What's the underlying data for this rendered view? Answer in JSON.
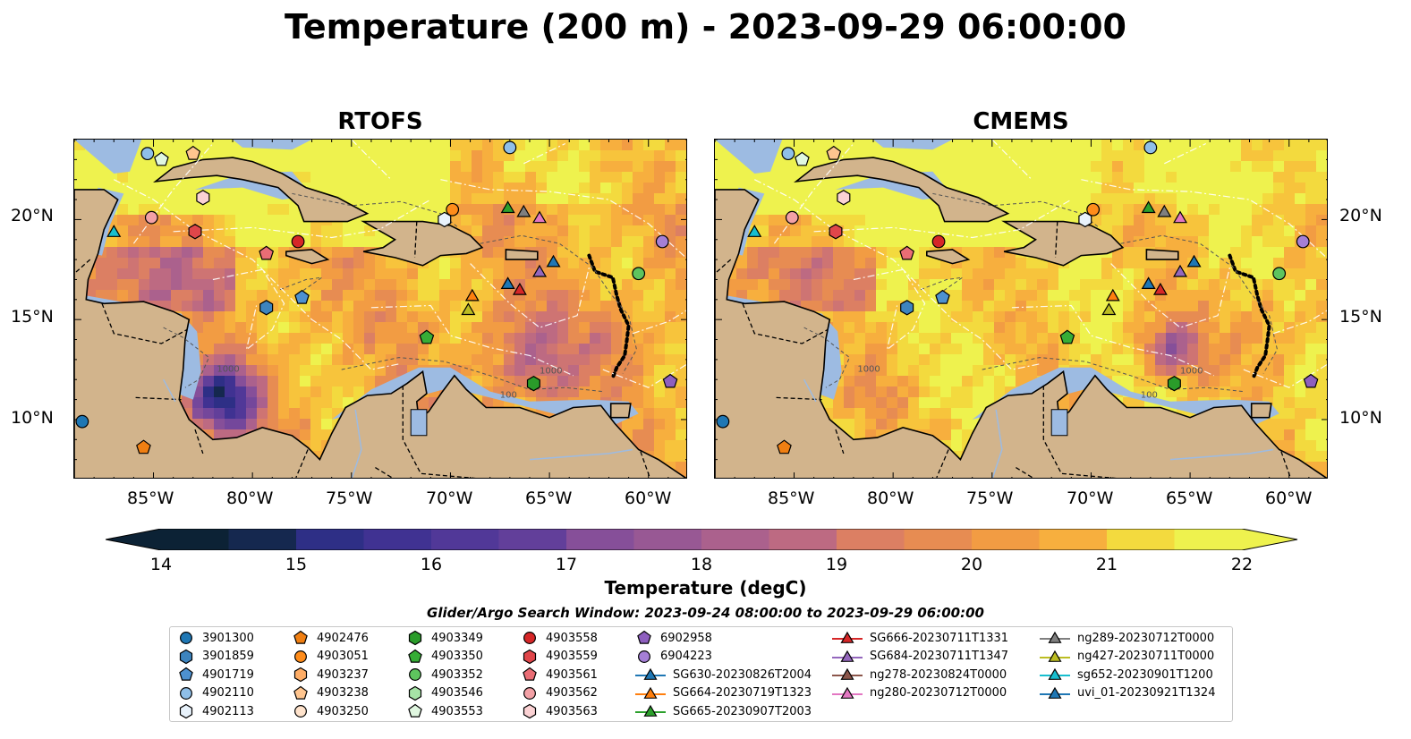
{
  "title": "Temperature (200 m) - 2023-09-29 06:00:00",
  "panels": [
    {
      "title": "RTOFS"
    },
    {
      "title": "CMEMS"
    }
  ],
  "map_extent": {
    "lon": [
      -89,
      -58
    ],
    "lat": [
      7,
      24
    ]
  },
  "lon_ticks": [
    "85°W",
    "80°W",
    "75°W",
    "70°W",
    "65°W",
    "60°W"
  ],
  "lat_ticks": [
    "20°N",
    "15°N",
    "10°N"
  ],
  "contour_labels": [
    "1000",
    "1000",
    "100"
  ],
  "colorbar": {
    "label": "Temperature (degC)",
    "ticks": [
      "14",
      "15",
      "16",
      "17",
      "18",
      "19",
      "20",
      "21",
      "22"
    ],
    "range": [
      14,
      22
    ],
    "extend": "both"
  },
  "search_window": "Glider/Argo Search Window: 2023-09-24 08:00:00 to 2023-09-29 06:00:00",
  "legend_columns": [
    [
      {
        "label": "3901300",
        "marker": "circle",
        "color": "#1f77b4"
      },
      {
        "label": "3901859",
        "marker": "hexagon",
        "color": "#3d84be"
      },
      {
        "label": "4901719",
        "marker": "pentagon",
        "color": "#4d91d0"
      },
      {
        "label": "4902110",
        "marker": "circle",
        "color": "#8fbfe8"
      },
      {
        "label": "4902113",
        "marker": "hexagon",
        "color": "#e8f2fb"
      }
    ],
    [
      {
        "label": "4902476",
        "marker": "pentagon",
        "color": "#f07f12"
      },
      {
        "label": "4903051",
        "marker": "circle",
        "color": "#ff8c1a"
      },
      {
        "label": "4903237",
        "marker": "hexagon",
        "color": "#ffad66"
      },
      {
        "label": "4903238",
        "marker": "pentagon",
        "color": "#ffc58f"
      },
      {
        "label": "4903250",
        "marker": "circle",
        "color": "#ffe3cc"
      }
    ],
    [
      {
        "label": "4903349",
        "marker": "hexagon",
        "color": "#2a9c2a"
      },
      {
        "label": "4903350",
        "marker": "pentagon",
        "color": "#36ad36"
      },
      {
        "label": "4903352",
        "marker": "circle",
        "color": "#5ec45e"
      },
      {
        "label": "4903546",
        "marker": "hexagon",
        "color": "#a6e3a6"
      },
      {
        "label": "4903553",
        "marker": "pentagon",
        "color": "#e0f7e0"
      }
    ],
    [
      {
        "label": "4903558",
        "marker": "circle",
        "color": "#d62728"
      },
      {
        "label": "4903559",
        "marker": "hexagon",
        "color": "#e0464a"
      },
      {
        "label": "4903561",
        "marker": "pentagon",
        "color": "#ea6d75"
      },
      {
        "label": "4903562",
        "marker": "circle",
        "color": "#f3a1a6"
      },
      {
        "label": "4903563",
        "marker": "hexagon",
        "color": "#fbd2d4"
      }
    ],
    [
      {
        "label": "6902958",
        "marker": "pentagon",
        "color": "#8e5fbf"
      },
      {
        "label": "6904223",
        "marker": "circle",
        "color": "#a57fd6"
      },
      {
        "label": "SG630-20230826T2004",
        "marker": "triangle",
        "color": "#1f77b4",
        "line": true
      },
      {
        "label": "SG664-20230719T1323",
        "marker": "triangle",
        "color": "#ff7f0e",
        "line": true
      },
      {
        "label": "SG665-20230907T2003",
        "marker": "triangle",
        "color": "#2ca02c",
        "line": true
      }
    ],
    [
      {
        "label": "SG666-20230711T1331",
        "marker": "triangle",
        "color": "#d62728",
        "line": true
      },
      {
        "label": "SG684-20230711T1347",
        "marker": "triangle",
        "color": "#9467bd",
        "line": true
      },
      {
        "label": "ng278-20230824T0000",
        "marker": "triangle",
        "color": "#8c564b",
        "line": true
      },
      {
        "label": "ng280-20230712T0000",
        "marker": "triangle",
        "color": "#e377c2",
        "line": true
      }
    ],
    [
      {
        "label": "ng289-20230712T0000",
        "marker": "triangle",
        "color": "#7f7f7f",
        "line": true
      },
      {
        "label": "ng427-20230711T0000",
        "marker": "triangle",
        "color": "#bcbd22",
        "line": true
      },
      {
        "label": "sg652-20230901T1200",
        "marker": "triangle",
        "color": "#17becf",
        "line": true
      },
      {
        "label": "uvi_01-20230921T1324",
        "marker": "triangle",
        "color": "#1f77b4",
        "line": true
      }
    ]
  ],
  "observations": [
    {
      "marker": "circle",
      "color": "#8fbfe8",
      "lon": -85.3,
      "lat": 23.3
    },
    {
      "marker": "pentagon",
      "color": "#e0f7e0",
      "lon": -84.6,
      "lat": 23.0
    },
    {
      "marker": "pentagon",
      "color": "#ffc58f",
      "lon": -83.0,
      "lat": 23.3
    },
    {
      "marker": "hexagon",
      "color": "#fbd2d4",
      "lon": -82.5,
      "lat": 21.1
    },
    {
      "marker": "circle",
      "color": "#f3a1a6",
      "lon": -85.1,
      "lat": 20.1
    },
    {
      "marker": "hexagon",
      "color": "#e0464a",
      "lon": -82.9,
      "lat": 19.4
    },
    {
      "marker": "triangle",
      "color": "#17becf",
      "lon": -87.0,
      "lat": 19.4
    },
    {
      "marker": "pentagon",
      "color": "#ea6d75",
      "lon": -79.3,
      "lat": 18.3
    },
    {
      "marker": "circle",
      "color": "#d62728",
      "lon": -77.7,
      "lat": 18.9
    },
    {
      "marker": "hexagon",
      "color": "#3d84be",
      "lon": -79.3,
      "lat": 15.6
    },
    {
      "marker": "pentagon",
      "color": "#4d91d0",
      "lon": -77.5,
      "lat": 16.1
    },
    {
      "marker": "circle",
      "color": "#ff8c1a",
      "lon": -69.9,
      "lat": 20.5
    },
    {
      "marker": "hexagon",
      "color": "#e8f2fb",
      "lon": -70.3,
      "lat": 20.0
    },
    {
      "marker": "circle",
      "color": "#8fbfe8",
      "lon": -67.0,
      "lat": 23.6
    },
    {
      "marker": "triangle",
      "color": "#2ca02c",
      "lon": -67.1,
      "lat": 20.6
    },
    {
      "marker": "triangle",
      "color": "#7f7f7f",
      "lon": -66.3,
      "lat": 20.4
    },
    {
      "marker": "triangle",
      "color": "#e377c2",
      "lon": -65.5,
      "lat": 20.1
    },
    {
      "marker": "triangle",
      "color": "#1f77b4",
      "lon": -64.8,
      "lat": 17.9
    },
    {
      "marker": "triangle",
      "color": "#9467bd",
      "lon": -65.5,
      "lat": 17.4
    },
    {
      "marker": "triangle",
      "color": "#1f77b4",
      "lon": -67.1,
      "lat": 16.8
    },
    {
      "marker": "triangle",
      "color": "#d62728",
      "lon": -66.5,
      "lat": 16.5
    },
    {
      "marker": "triangle",
      "color": "#ff7f0e",
      "lon": -68.9,
      "lat": 16.2
    },
    {
      "marker": "triangle",
      "color": "#bcbd22",
      "lon": -69.1,
      "lat": 15.5
    },
    {
      "marker": "pentagon",
      "color": "#36ad36",
      "lon": -71.2,
      "lat": 14.1
    },
    {
      "marker": "hexagon",
      "color": "#2a9c2a",
      "lon": -65.8,
      "lat": 11.8
    },
    {
      "marker": "circle",
      "color": "#a57fd6",
      "lon": -59.3,
      "lat": 18.9
    },
    {
      "marker": "circle",
      "color": "#5ec45e",
      "lon": -60.5,
      "lat": 17.3
    },
    {
      "marker": "pentagon",
      "color": "#8e5fbf",
      "lon": -58.9,
      "lat": 11.9
    },
    {
      "marker": "circle",
      "color": "#1f77b4",
      "lon": -88.6,
      "lat": 9.9
    },
    {
      "marker": "pentagon",
      "color": "#f07f12",
      "lon": -85.5,
      "lat": 8.6
    }
  ]
}
